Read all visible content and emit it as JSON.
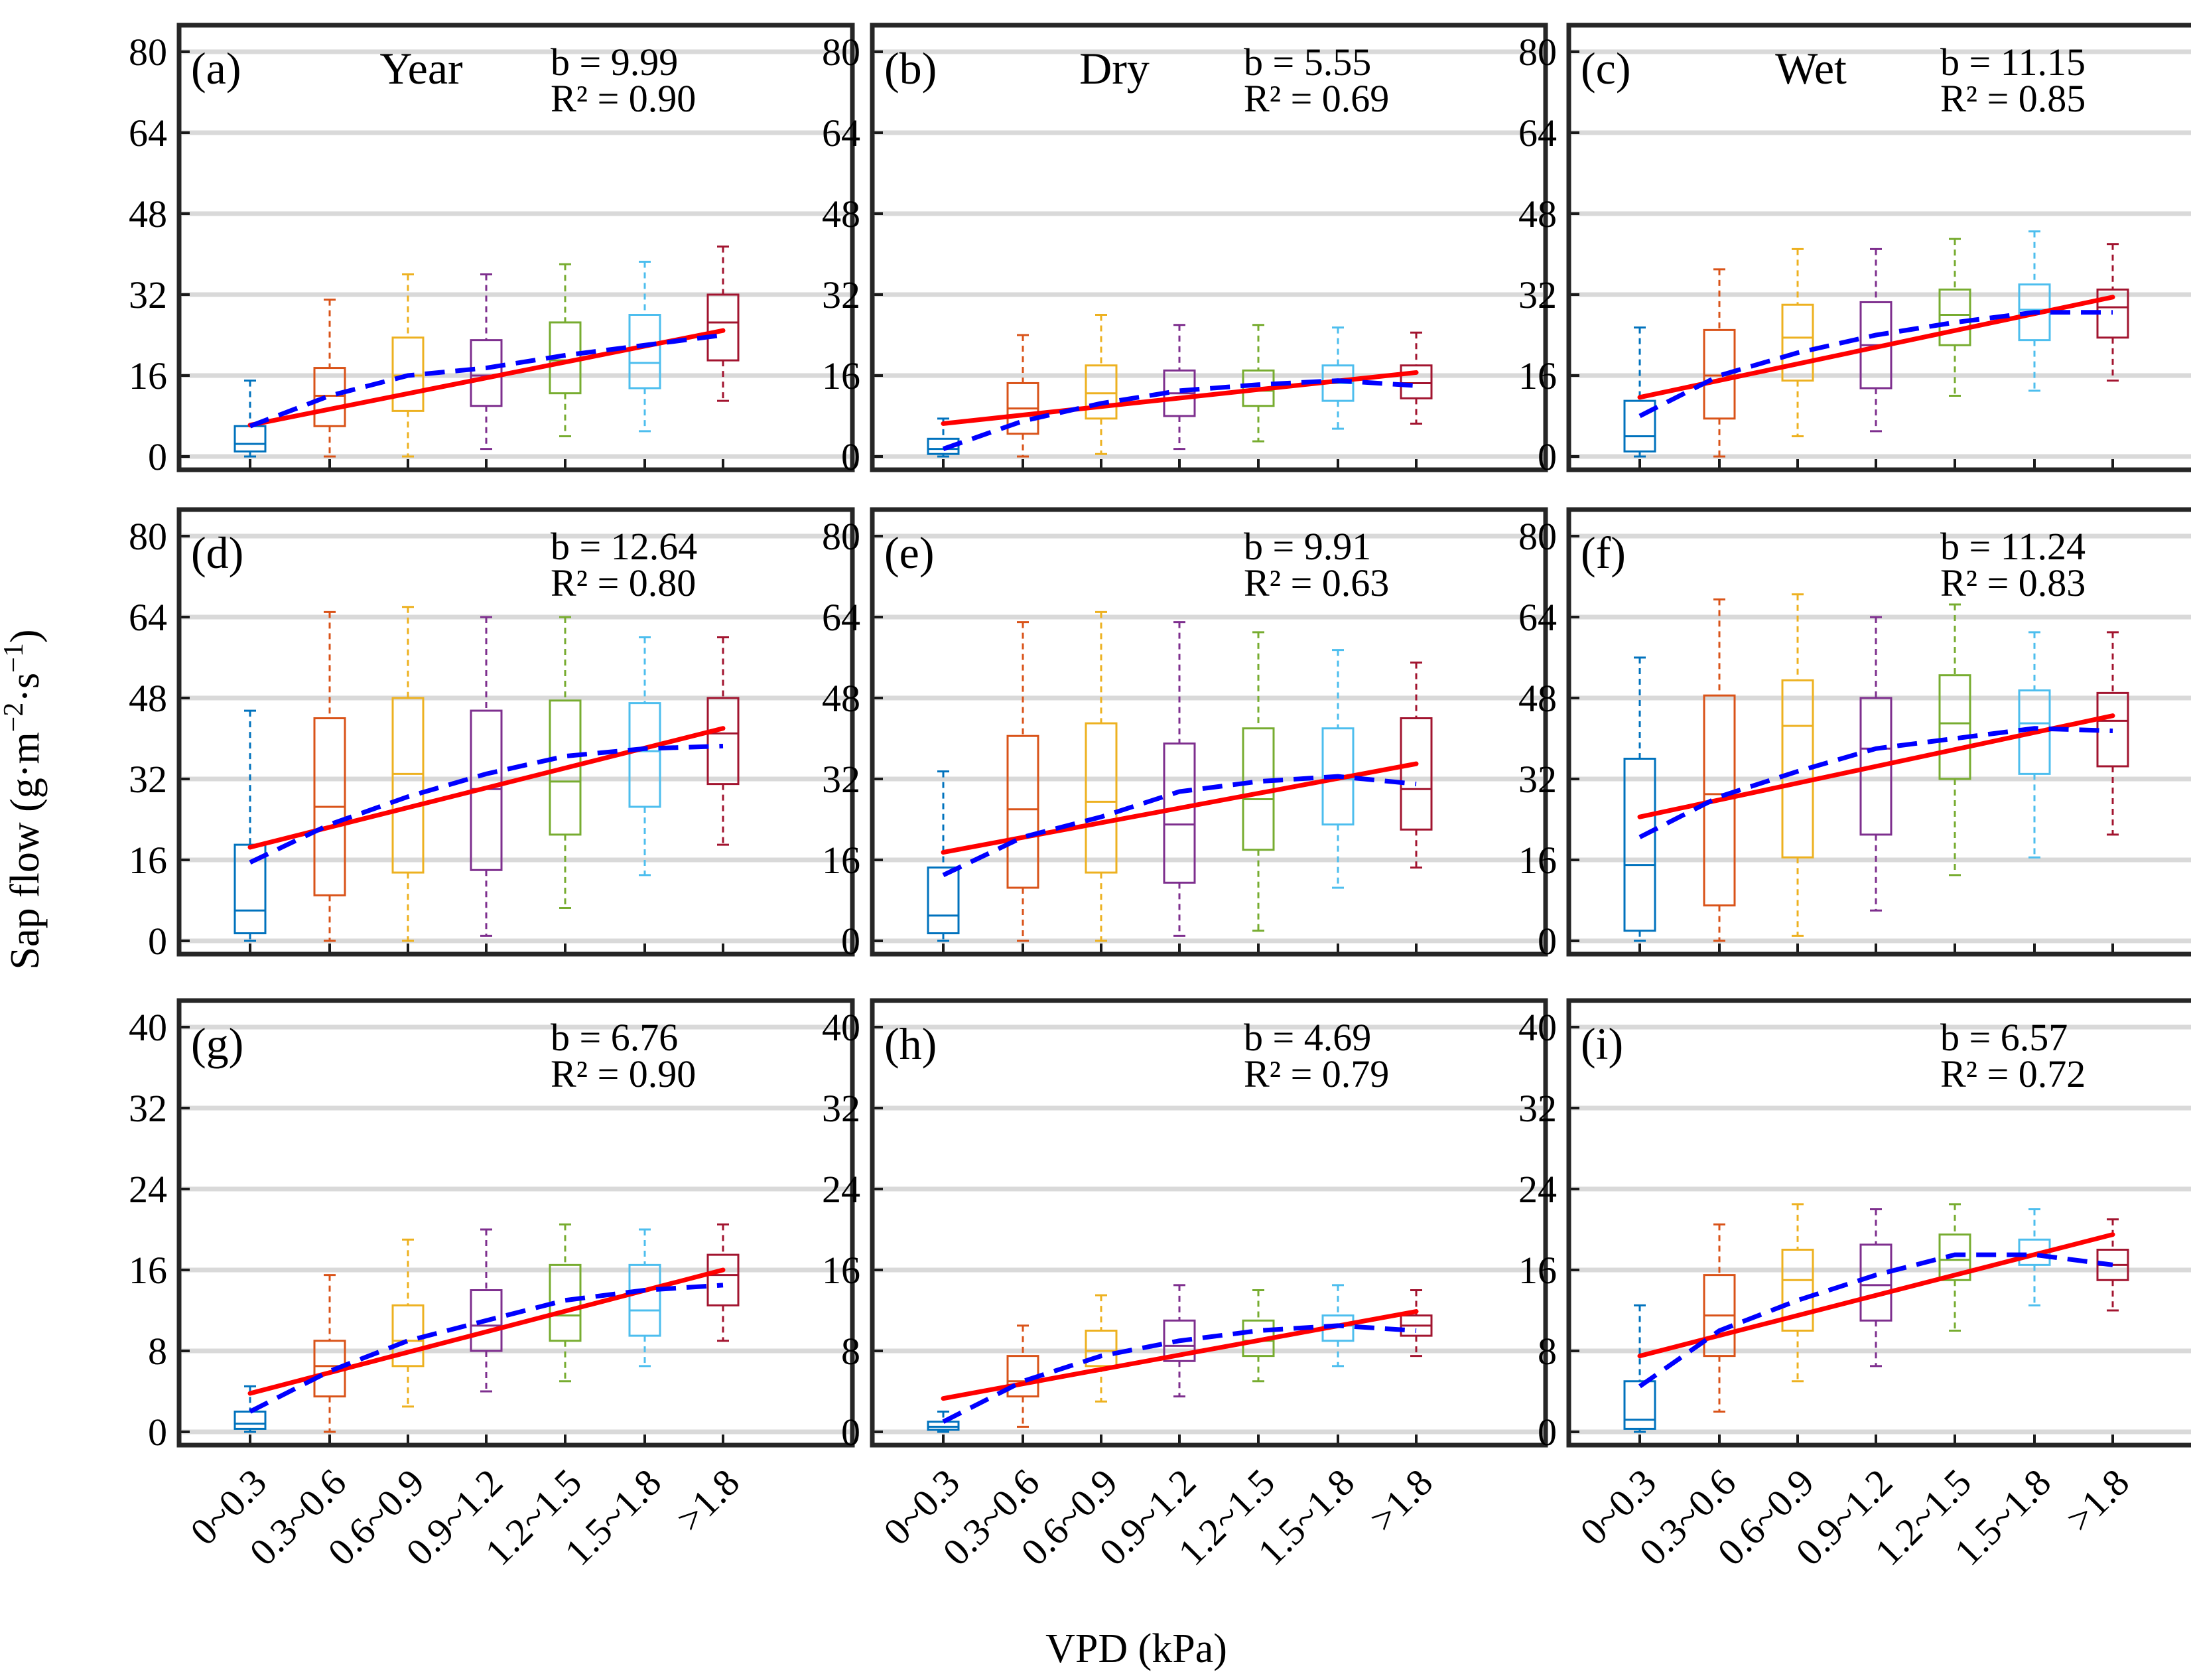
{
  "figure": {
    "ylabel_main": "Sap flow (g·m",
    "ylabel_exp1": "−2",
    "ylabel_mid": "·s",
    "ylabel_exp2": "−1",
    "ylabel_end": ")",
    "xlabel": "VPD (kPa)",
    "categories": [
      "0~0.3",
      "0.3~0.6",
      "0.6~0.9",
      "0.9~1.2",
      "1.2~1.5",
      "1.5~1.8",
      ">1.8"
    ],
    "box_colors": [
      "#0072BD",
      "#D95319",
      "#EDB120",
      "#7E2F8E",
      "#77AC30",
      "#4DBEEE",
      "#A2142F"
    ],
    "fit_colors": {
      "linear": "#ff0000",
      "dashed": "#0000ff"
    }
  },
  "chart_data": [
    {
      "type": "box",
      "label": "(a)",
      "title": "Year",
      "b_text": "b = 9.99",
      "r2_text": "R² = 0.90",
      "ylim": [
        0,
        80
      ],
      "yticks": [
        0,
        16,
        32,
        48,
        64,
        80
      ],
      "boxes": [
        [
          0,
          1,
          2.5,
          6,
          15
        ],
        [
          0,
          6,
          12,
          17.5,
          31
        ],
        [
          0,
          9,
          16,
          23.5,
          36
        ],
        [
          1.5,
          10,
          16,
          23,
          36
        ],
        [
          4,
          12.5,
          19,
          26.5,
          38
        ],
        [
          5,
          13.5,
          18.5,
          28,
          38.5
        ],
        [
          11,
          19,
          26.5,
          32,
          41.5
        ]
      ],
      "linear": [
        6.2,
        24.9
      ],
      "dashed": [
        6,
        12,
        16,
        17.5,
        20,
        22,
        24
      ]
    },
    {
      "type": "box",
      "label": "(b)",
      "title": "Dry",
      "b_text": "b = 5.55",
      "r2_text": "R² = 0.69",
      "ylim": [
        0,
        80
      ],
      "yticks": [
        0,
        16,
        32,
        48,
        64,
        80
      ],
      "boxes": [
        [
          0,
          0.5,
          1.5,
          3.5,
          7.5
        ],
        [
          0,
          4.5,
          9.5,
          14.5,
          24
        ],
        [
          0.5,
          7.5,
          12.5,
          18,
          28
        ],
        [
          1.5,
          8,
          12.5,
          17,
          26
        ],
        [
          3,
          10,
          13,
          17,
          26
        ],
        [
          5.5,
          11,
          14.5,
          18,
          25.5
        ],
        [
          6.5,
          11.5,
          14.5,
          18,
          24.5
        ]
      ],
      "linear": [
        6.5,
        16.6
      ],
      "dashed": [
        1.5,
        7,
        10.5,
        13,
        14.2,
        15,
        14
      ]
    },
    {
      "type": "box",
      "label": "(c)",
      "title": "Wet",
      "b_text": "b = 11.15",
      "r2_text": "R² = 0.85",
      "ylim": [
        0,
        80
      ],
      "yticks": [
        0,
        16,
        32,
        48,
        64,
        80
      ],
      "boxes": [
        [
          0,
          1,
          4,
          11,
          25.5
        ],
        [
          0,
          7.5,
          16,
          25,
          37
        ],
        [
          4,
          15,
          23.5,
          30,
          41
        ],
        [
          5,
          13.5,
          22,
          30.5,
          41
        ],
        [
          12,
          22,
          28,
          33,
          43
        ],
        [
          13,
          23,
          29,
          34,
          44.5
        ],
        [
          15,
          23.5,
          29.5,
          33,
          42
        ]
      ],
      "linear": [
        11.7,
        31.5
      ],
      "dashed": [
        8,
        16,
        20.5,
        24,
        26.5,
        28.5,
        28.5
      ]
    },
    {
      "type": "box",
      "label": "(d)",
      "title": "",
      "b_text": "b = 12.64",
      "r2_text": "R² = 0.80",
      "ylim": [
        0,
        80
      ],
      "yticks": [
        0,
        16,
        32,
        48,
        64,
        80
      ],
      "boxes": [
        [
          0,
          1.5,
          6,
          19,
          45.5
        ],
        [
          0,
          9,
          26.5,
          44,
          65
        ],
        [
          0,
          13.5,
          33,
          48,
          66
        ],
        [
          1,
          14,
          30,
          45.5,
          64
        ],
        [
          6.5,
          21,
          31.5,
          47.5,
          64
        ],
        [
          13,
          26.5,
          37.5,
          47,
          60
        ],
        [
          19,
          31,
          41,
          48,
          60
        ]
      ],
      "linear": [
        18.5,
        42
      ],
      "dashed": [
        15.5,
        23,
        28.5,
        33,
        36.5,
        38,
        38.5
      ]
    },
    {
      "type": "box",
      "label": "(e)",
      "title": "",
      "b_text": "b = 9.91",
      "r2_text": "R² = 0.63",
      "ylim": [
        0,
        80
      ],
      "yticks": [
        0,
        16,
        32,
        48,
        64,
        80
      ],
      "boxes": [
        [
          0,
          1.5,
          5,
          14.5,
          33.5
        ],
        [
          0,
          10.5,
          26,
          40.5,
          63
        ],
        [
          0,
          13.5,
          27.5,
          43,
          65
        ],
        [
          1,
          11.5,
          23,
          39,
          63
        ],
        [
          2,
          18,
          28,
          42,
          61
        ],
        [
          10.5,
          23,
          32,
          42,
          57.5
        ],
        [
          14.5,
          22,
          30,
          44,
          55
        ]
      ],
      "linear": [
        17.5,
        35
      ],
      "dashed": [
        13,
        20.5,
        24.5,
        29.5,
        31.5,
        32.5,
        31
      ]
    },
    {
      "type": "box",
      "label": "(f)",
      "title": "",
      "b_text": "b = 11.24",
      "r2_text": "R² = 0.83",
      "ylim": [
        0,
        80
      ],
      "yticks": [
        0,
        16,
        32,
        48,
        64,
        80
      ],
      "boxes": [
        [
          0,
          2,
          15,
          36,
          56
        ],
        [
          0,
          7,
          29,
          48.5,
          67.5
        ],
        [
          1,
          16.5,
          42.5,
          51.5,
          68.5
        ],
        [
          6,
          21,
          38,
          48,
          64
        ],
        [
          13,
          32,
          43,
          52.5,
          66.5
        ],
        [
          16.5,
          33,
          43,
          49.5,
          61
        ],
        [
          21,
          34.5,
          43.5,
          49,
          61
        ]
      ],
      "linear": [
        24.5,
        44.5
      ],
      "dashed": [
        20.5,
        28.5,
        33.5,
        38,
        40,
        42,
        41.5
      ]
    },
    {
      "type": "box",
      "label": "(g)",
      "title": "",
      "b_text": "b = 6.76",
      "r2_text": "R² = 0.90",
      "ylim": [
        0,
        40
      ],
      "yticks": [
        0,
        8,
        16,
        24,
        32,
        40
      ],
      "boxes": [
        [
          0,
          0.3,
          0.8,
          2,
          4.5
        ],
        [
          0,
          3.5,
          6.5,
          9,
          15.5
        ],
        [
          2.5,
          6.5,
          9,
          12.5,
          19
        ],
        [
          4,
          8,
          10.5,
          14,
          20
        ],
        [
          5,
          9,
          11.5,
          16.5,
          20.5
        ],
        [
          6.5,
          9.5,
          12,
          16.5,
          20
        ],
        [
          9,
          12.5,
          15.5,
          17.5,
          20.5
        ]
      ],
      "linear": [
        3.8,
        16
      ],
      "dashed": [
        2,
        6,
        9,
        11,
        13,
        14,
        14.5
      ]
    },
    {
      "type": "box",
      "label": "(h)",
      "title": "",
      "b_text": "b = 4.69",
      "r2_text": "R² = 0.79",
      "ylim": [
        0,
        40
      ],
      "yticks": [
        0,
        8,
        16,
        24,
        32,
        40
      ],
      "boxes": [
        [
          0,
          0.2,
          0.5,
          1,
          2
        ],
        [
          0.5,
          3.5,
          5,
          7.5,
          10.5
        ],
        [
          3,
          6.5,
          8,
          10,
          13.5
        ],
        [
          3.5,
          7,
          8.5,
          11,
          14.5
        ],
        [
          5,
          7.5,
          9,
          11,
          14
        ],
        [
          6.5,
          9,
          10.5,
          11.5,
          14.5
        ],
        [
          7.5,
          9.5,
          10.5,
          11.5,
          14
        ]
      ],
      "linear": [
        3.3,
        11.9
      ],
      "dashed": [
        1,
        5,
        7.5,
        9,
        10,
        10.5,
        10
      ]
    },
    {
      "type": "box",
      "label": "(i)",
      "title": "",
      "b_text": "b = 6.57",
      "r2_text": "R² = 0.72",
      "ylim": [
        0,
        40
      ],
      "yticks": [
        0,
        8,
        16,
        24,
        32,
        40
      ],
      "boxes": [
        [
          0,
          0.3,
          1.2,
          5,
          12.5
        ],
        [
          2,
          7.5,
          11.5,
          15.5,
          20.5
        ],
        [
          5,
          10,
          15,
          18,
          22.5
        ],
        [
          6.5,
          11,
          14.5,
          18.5,
          22
        ],
        [
          10,
          15,
          17,
          19.5,
          22.5
        ],
        [
          12.5,
          16.5,
          17.5,
          19,
          22
        ],
        [
          12,
          15,
          16.5,
          18,
          21
        ]
      ],
      "linear": [
        7.5,
        19.5
      ],
      "dashed": [
        4.5,
        10,
        13,
        15.5,
        17.5,
        17.5,
        16.5
      ]
    }
  ]
}
